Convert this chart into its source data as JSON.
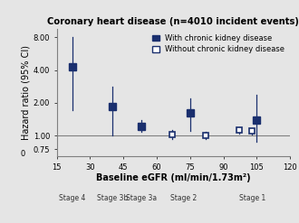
{
  "title": "Coronary heart disease (n=4010 incident events)",
  "xlabel": "Baseline eGFR (ml/min/1.73m²)",
  "ylabel": "Hazard ratio (95% CI)",
  "background_color": "#e5e5e5",
  "with_ckd": {
    "x": [
      22,
      40,
      53,
      75,
      105
    ],
    "y": [
      4.3,
      1.85,
      1.22,
      1.62,
      1.38
    ],
    "ci_low": [
      1.7,
      1.0,
      1.08,
      1.1,
      0.88
    ],
    "ci_high": [
      8.0,
      2.8,
      1.38,
      2.2,
      2.35
    ],
    "color": "#1a2f6e",
    "markersize": 6,
    "label": "With chronic kidney disease"
  },
  "without_ckd": {
    "x": [
      67,
      82,
      97,
      103
    ],
    "y": [
      1.02,
      1.0,
      1.12,
      1.1
    ],
    "ci_low": [
      0.93,
      0.93,
      1.05,
      1.03
    ],
    "ci_high": [
      1.12,
      1.09,
      1.2,
      1.18
    ],
    "color": "#1a2f6e",
    "markersize": 5,
    "label": "Without chronic kidney disease"
  },
  "stages": [
    {
      "label": "Stage 4",
      "x": 22
    },
    {
      "label": "Stage 3b",
      "x": 40
    },
    {
      "label": "Stage 3a",
      "x": 53
    },
    {
      "label": "Stage 2",
      "x": 72
    },
    {
      "label": "Stage 1",
      "x": 103
    }
  ],
  "xlim": [
    15,
    120
  ],
  "xticks": [
    15,
    30,
    45,
    60,
    75,
    90,
    105,
    120
  ],
  "ylim_low": 0.65,
  "ylim_high": 9.5,
  "ytick_vals": [
    0.75,
    1.0,
    2.0,
    4.0,
    8.0
  ],
  "ytick_labels": [
    "0.75",
    "1.00",
    "2.00",
    "4.00",
    "8.00"
  ],
  "hline_y": 1.0,
  "title_fontsize": 7.2,
  "axis_label_fontsize": 7,
  "tick_fontsize": 6,
  "legend_fontsize": 6,
  "stage_fontsize": 5.5
}
